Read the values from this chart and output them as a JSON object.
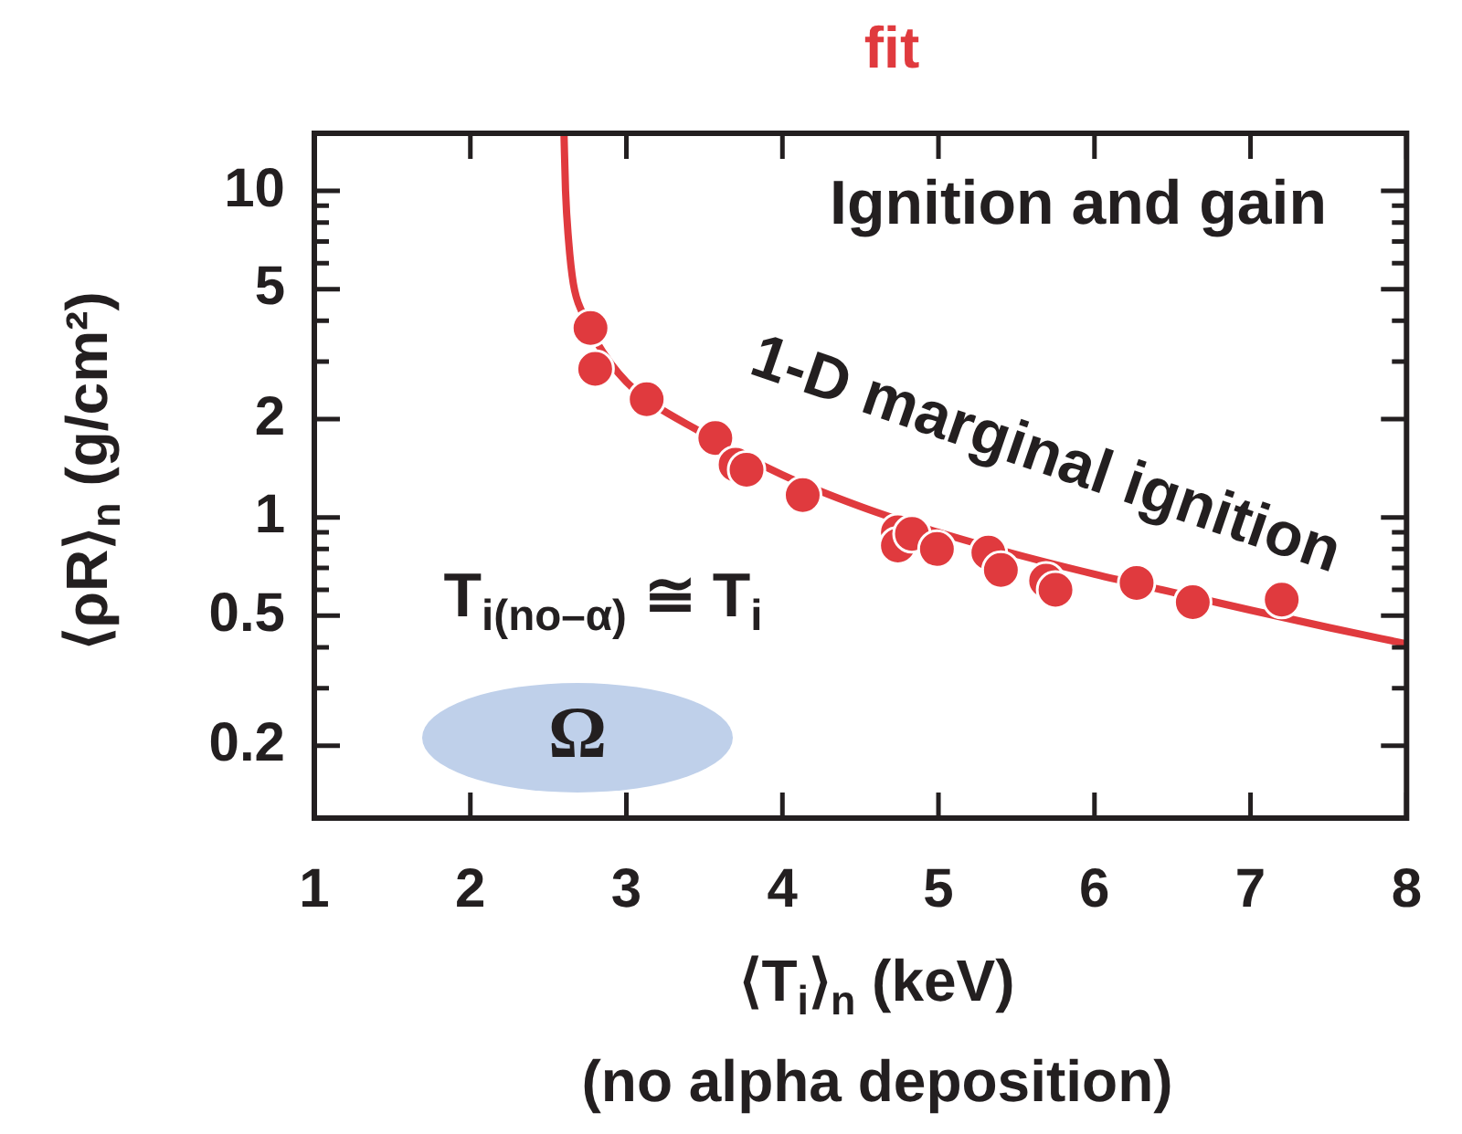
{
  "chart_data": {
    "type": "scatter",
    "title": "fit",
    "xlabel": "⟨T$_{i}$⟩$_{n}$ (keV)\n(no alpha deposition)",
    "ylabel": "⟨ρR⟩$_{n}$ (g/cm²)",
    "xlim": [
      1,
      8
    ],
    "xticks": [
      1,
      2,
      3,
      4,
      5,
      6,
      7,
      8
    ],
    "ylim": [
      0.12,
      15
    ],
    "yticks": [
      0.2,
      {
        "value": 0.3,
        "label": null
      },
      {
        "value": 0.4,
        "label": null
      },
      0.5,
      {
        "value": 0.6,
        "label": null
      },
      {
        "value": 0.7,
        "label": null
      },
      {
        "value": 0.8,
        "label": null
      },
      {
        "value": 0.9,
        "label": null
      },
      1,
      2,
      {
        "value": 3,
        "label": null
      },
      {
        "value": 4,
        "label": null
      },
      5,
      {
        "value": 6,
        "label": null
      },
      {
        "value": 7,
        "label": null
      },
      {
        "value": 8,
        "label": null
      },
      {
        "value": 9,
        "label": null
      },
      10
    ],
    "log": true,
    "grid": false,
    "legend": false,
    "series": [
      {
        "color": "#e03a3e",
        "marker": "circle",
        "x": [
          2.77,
          2.8,
          3.13,
          3.57,
          3.7,
          3.77,
          4.13,
          4.74,
          4.74,
          4.83,
          4.99,
          5.32,
          5.4,
          5.69,
          5.75,
          6.27,
          6.63,
          7.2
        ],
        "values": [
          3.8,
          2.85,
          2.3,
          1.75,
          1.45,
          1.4,
          1.17,
          0.9,
          0.82,
          0.89,
          0.8,
          0.78,
          0.69,
          0.64,
          0.6,
          0.63,
          0.55,
          0.56
        ]
      },
      {
        "type": "line",
        "color": "#e03a3e",
        "line_style": "solid",
        "x": [
          2.6,
          2.61,
          2.63,
          2.66,
          2.72,
          2.8,
          3.0,
          3.5,
          4.0,
          4.5,
          5.0,
          5.5,
          6.0,
          6.5,
          7.0,
          7.5,
          8.0
        ],
        "values": [
          15,
          10,
          7,
          5.2,
          4.2,
          3.5,
          2.6,
          1.8,
          1.35,
          1.08,
          0.9,
          0.77,
          0.67,
          0.59,
          0.52,
          0.46,
          0.41
        ]
      }
    ],
    "annotations": [
      "Ignition and gain",
      "1-D marginal ignition",
      "T$_{i(no–α)}$ ≅ T$_{i}$",
      "Ω"
    ]
  }
}
